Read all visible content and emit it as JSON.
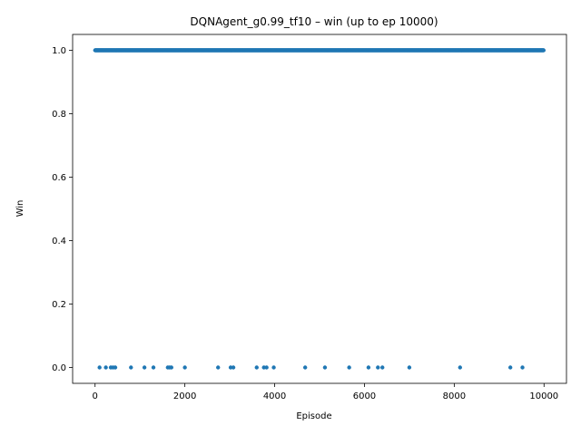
{
  "chart_data": {
    "type": "scatter",
    "title": "DQNAgent_g0.99_tf10 – win (up to ep 10000)",
    "xlabel": "Episode",
    "ylabel": "Win",
    "xlim": [
      -500,
      10500
    ],
    "ylim": [
      -0.05,
      1.05
    ],
    "xticks": [
      0,
      2000,
      4000,
      6000,
      8000,
      10000
    ],
    "xtick_labels": [
      "0",
      "2000",
      "4000",
      "6000",
      "8000",
      "10000"
    ],
    "yticks": [
      0.0,
      0.2,
      0.4,
      0.6,
      0.8,
      1.0
    ],
    "ytick_labels": [
      "0.0",
      "0.2",
      "0.4",
      "0.6",
      "0.8",
      "1.0"
    ],
    "grid": false,
    "marker_color": "#1f77b4",
    "series": [
      {
        "description": "win = 1 for all episodes from 1 to 10000 except the losses listed below",
        "episode_range": [
          1,
          10000
        ],
        "value": 1
      },
      {
        "description": "episodes with win = 0",
        "x": [
          100,
          240,
          350,
          400,
          450,
          800,
          1100,
          1300,
          1620,
          1660,
          1700,
          2000,
          2740,
          3020,
          3080,
          3600,
          3760,
          3820,
          3980,
          4680,
          5120,
          5660,
          6090,
          6300,
          6400,
          7000,
          8130,
          9250,
          9520
        ],
        "value": 0
      }
    ]
  }
}
